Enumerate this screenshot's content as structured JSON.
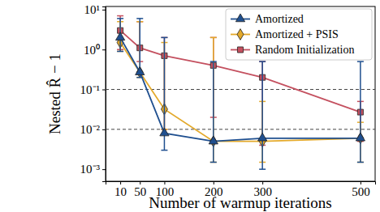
{
  "chart_data": {
    "type": "line",
    "x_label": "Number of warmup iterations",
    "y_label": "Nested R̂ − 1",
    "x": [
      10,
      50,
      100,
      200,
      300,
      500
    ],
    "xlim": [
      -20,
      530
    ],
    "xticks": [
      10,
      50,
      100,
      200,
      300,
      500
    ],
    "ylim": [
      0.0005,
      12
    ],
    "yticks": [
      {
        "value": 0.001,
        "label": "10⁻³"
      },
      {
        "value": 0.01,
        "label": "10⁻²"
      },
      {
        "value": 0.1,
        "label": "10⁻¹"
      },
      {
        "value": 1,
        "label": "10⁰"
      },
      {
        "value": 10,
        "label": "10¹"
      }
    ],
    "log": "y",
    "grid": false,
    "legend": "upper right",
    "reference_lines": [
      0.1,
      0.01
    ],
    "series": [
      {
        "name": "Amortized",
        "color": "#1f4f8f",
        "marker": "triangle",
        "line_style": "solid",
        "values": [
          2.0,
          0.27,
          0.008,
          0.005,
          0.006,
          0.006
        ],
        "lower": [
          0.9,
          0.2,
          0.003,
          0.0015,
          0.001,
          0.0015
        ],
        "upper": [
          6,
          6,
          2,
          0.5,
          0.5,
          0.5
        ]
      },
      {
        "name": "Amortized + PSIS",
        "color": "#e3a92b",
        "marker": "diamond",
        "line_style": "solid",
        "values": [
          1.5,
          0.27,
          0.032,
          0.005,
          0.005,
          0.006
        ],
        "lower": [
          0.9,
          0.2,
          0.01,
          0.0015,
          0.0015,
          0.0015
        ],
        "upper": [
          5,
          5,
          1.5,
          2,
          0.05,
          0.015
        ]
      },
      {
        "name": "Random Initialization",
        "color": "#c4505f",
        "marker": "square",
        "line_style": "solid",
        "values": [
          3.0,
          1.1,
          0.7,
          0.4,
          0.2,
          0.027
        ],
        "lower": [
          1.0,
          0.5,
          0.01,
          0.02,
          0.004,
          0.005
        ],
        "upper": [
          7,
          5,
          2,
          2,
          0.5,
          0.05
        ]
      }
    ]
  }
}
